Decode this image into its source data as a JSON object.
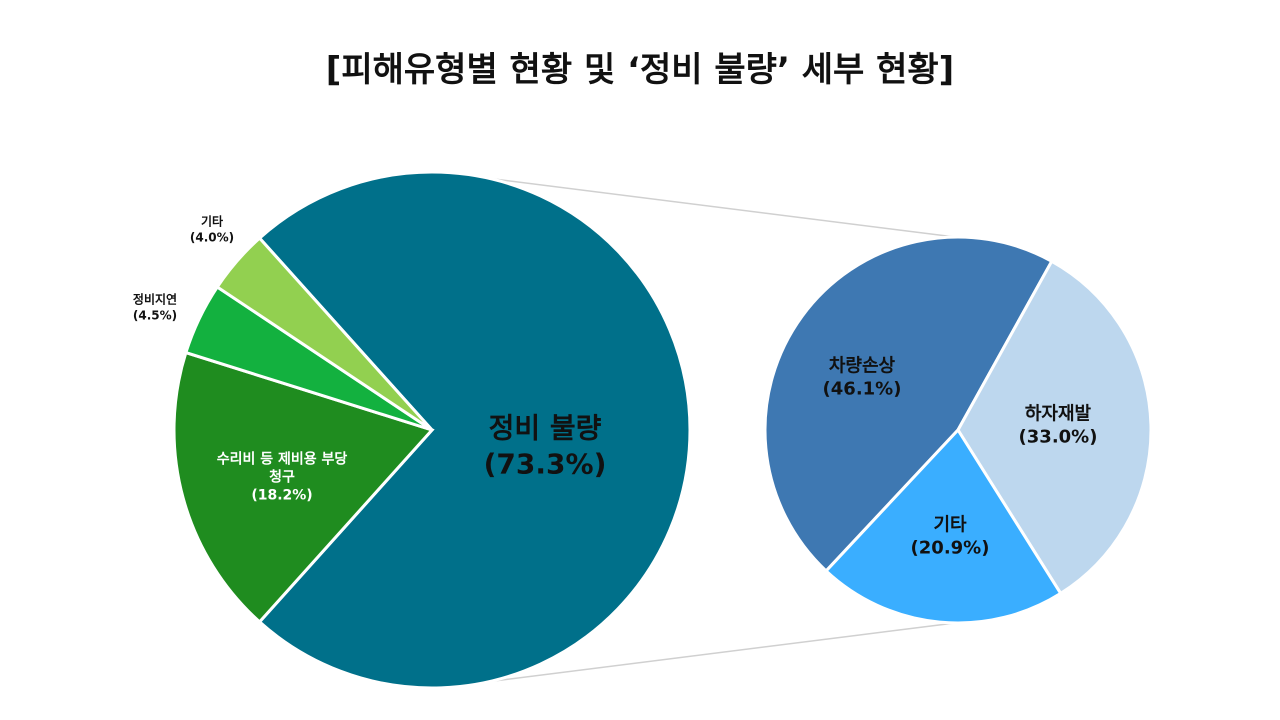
{
  "chart_data": [
    {
      "type": "pie",
      "title": "[피해유형별 현황 및 ‘정비 불량’ 세부 현황]",
      "categories": [
        "정비 불량",
        "수리비 등 제비용 부당청구",
        "정비지연",
        "기타"
      ],
      "values": [
        73.3,
        18.2,
        4.5,
        4.0
      ],
      "value_labels": [
        "(73.3%)",
        "(18.2%)",
        "(4.5%)",
        "(4.0%)"
      ],
      "colors": [
        "#00708a",
        "#1f8c1f",
        "#13b13f",
        "#92d050"
      ]
    },
    {
      "type": "pie",
      "categories": [
        "차량손상",
        "하자재발",
        "기타"
      ],
      "values": [
        46.1,
        33.0,
        20.9
      ],
      "value_labels": [
        "(46.1%)",
        "(33.0%)",
        "(20.9%)"
      ],
      "colors": [
        "#3e78b2",
        "#bdd7ee",
        "#3aaeff"
      ]
    }
  ]
}
